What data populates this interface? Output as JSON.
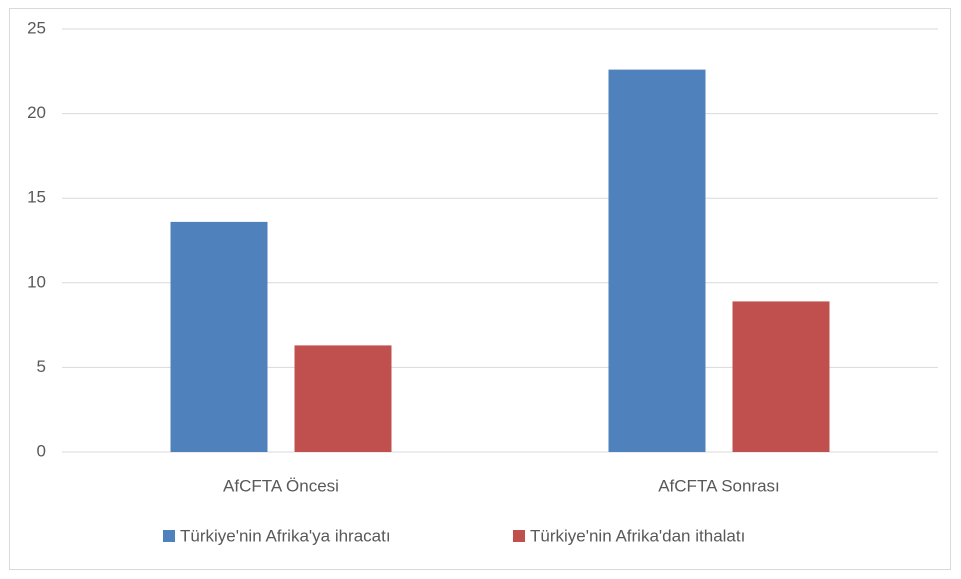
{
  "chart_data": {
    "type": "bar",
    "categories": [
      "AfCFTA Öncesi",
      "AfCFTA Sonrası"
    ],
    "series": [
      {
        "name": "Türkiye'nin Afrika'ya ihracatı",
        "color": "#4f81bd",
        "values": [
          13.6,
          22.6
        ]
      },
      {
        "name": "Türkiye'nin Afrika'dan ithalatı",
        "color": "#c0504d",
        "values": [
          6.3,
          8.9
        ]
      }
    ],
    "ylim": [
      0,
      25
    ],
    "yticks": [
      0,
      5,
      10,
      15,
      20,
      25
    ],
    "grid": true,
    "legend": "bottom"
  }
}
